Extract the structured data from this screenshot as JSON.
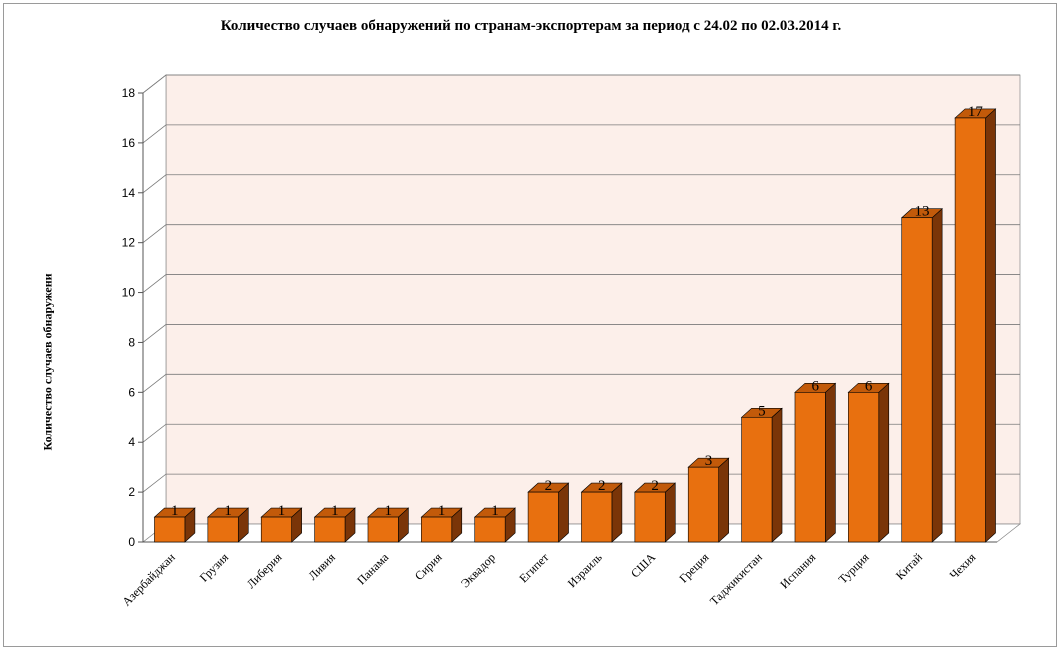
{
  "chart_data": {
    "type": "bar",
    "title": "Количество случаев обнаружений по странам-экспортерам за период с 24.02 по 02.03.2014 г.",
    "ylabel": "Количество случаев обнаружени",
    "xlabel": "",
    "categories": [
      "Азербайджан",
      "Грузия",
      "Либерия",
      "Ливия",
      "Панама",
      "Сирия",
      "Эквадор",
      "Египет",
      "Израиль",
      "США",
      "Греция",
      "Таджикистан",
      "Испания",
      "Турция",
      "Китай",
      "Чехия"
    ],
    "values": [
      1,
      1,
      1,
      1,
      1,
      1,
      1,
      2,
      2,
      2,
      3,
      5,
      6,
      6,
      13,
      17
    ],
    "ylim": [
      0,
      18
    ],
    "yticks": [
      0,
      2,
      4,
      6,
      8,
      10,
      12,
      14,
      16,
      18
    ],
    "grid": true,
    "legend": "none",
    "colors": {
      "bar_front": "#e8700f",
      "bar_top": "#c25a0a",
      "bar_side": "#7a3508",
      "back_wall": "#fcefea"
    }
  }
}
